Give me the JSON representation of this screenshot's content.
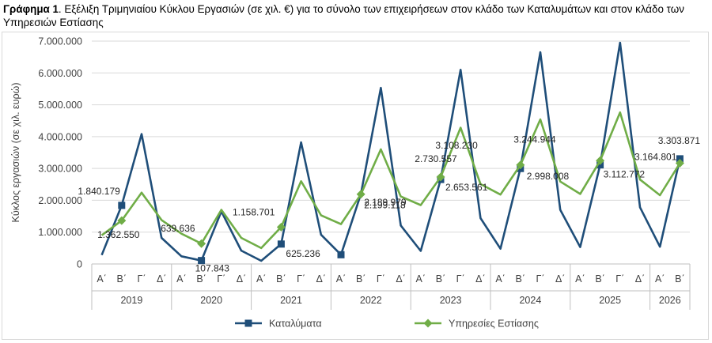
{
  "header": {
    "title_bold": "Γράφημα 1",
    "title_rest": ". Εξέλιξη Τριμηνιαίου Κύκλου Εργασιών (σε χιλ. €) για το σύνολο των επιχειρήσεων στον κλάδο των Καταλυμάτων και στον κλάδο των Υπηρεσιών Εστίασης"
  },
  "chart_data": {
    "type": "line",
    "title": "",
    "xlabel": "",
    "ylabel": "Κύκλος εργασιών (σε χιλ. ευρώ)",
    "ylim": [
      0,
      7000000
    ],
    "yticks": [
      "0",
      "1.000.000",
      "2.000.000",
      "3.000.000",
      "4.000.000",
      "5.000.000",
      "6.000.000",
      "7.000.000"
    ],
    "ytick_values": [
      0,
      1000000,
      2000000,
      3000000,
      4000000,
      5000000,
      6000000,
      7000000
    ],
    "categories": [
      "Α΄",
      "Β΄",
      "Γ΄",
      "Δ΄",
      "Α΄",
      "Β΄",
      "Γ΄",
      "Δ΄",
      "Α΄",
      "Β΄",
      "Γ΄",
      "Δ΄",
      "Α΄",
      "Β΄",
      "Γ΄",
      "Δ΄",
      "Α΄",
      "Β΄",
      "Γ΄",
      "Δ΄",
      "Α΄",
      "Β΄",
      "Γ΄",
      "Δ΄",
      "Α΄",
      "Β΄",
      "Γ΄",
      "Δ΄",
      "Α΄",
      "Β΄"
    ],
    "years": [
      {
        "label": "2019",
        "count": 4
      },
      {
        "label": "2020",
        "count": 4
      },
      {
        "label": "2021",
        "count": 4
      },
      {
        "label": "2022",
        "count": 4
      },
      {
        "label": "2023",
        "count": 4
      },
      {
        "label": "2024",
        "count": 4
      },
      {
        "label": "2025",
        "count": 4
      },
      {
        "label": "2026",
        "count": 2
      }
    ],
    "legend_position": "bottom",
    "gridlines": true,
    "series": [
      {
        "name": "Καταλύματα",
        "color": "#1f4e79",
        "marker": "square",
        "values": [
          280000,
          1840179,
          4080000,
          820000,
          240000,
          107843,
          1650000,
          420000,
          100000,
          625236,
          3820000,
          920000,
          290000,
          2199118,
          5530000,
          1210000,
          410000,
          2653561,
          6100000,
          1440000,
          480000,
          2998008,
          6650000,
          1700000,
          530000,
          3112772,
          6950000,
          1780000,
          540000,
          3303871
        ],
        "markers_at": [
          1,
          5,
          9,
          12,
          17,
          21,
          25,
          29
        ],
        "labels": [
          {
            "index": 1,
            "text": "1.840.179"
          },
          {
            "index": 5,
            "text": "107.843"
          },
          {
            "index": 9,
            "text": "625.236"
          },
          {
            "index": 13,
            "text": "2.199.118"
          },
          {
            "index": 17,
            "text": "2.653.561"
          },
          {
            "index": 21,
            "text": "2.998.008"
          },
          {
            "index": 25,
            "text": "3.112.772"
          },
          {
            "index": 29,
            "text": "3.303.871"
          }
        ]
      },
      {
        "name": "Υπηρεσίες Εστίασης",
        "color": "#70ad47",
        "marker": "diamond",
        "values": [
          900000,
          1362550,
          2240000,
          1380000,
          950000,
          639636,
          1700000,
          820000,
          500000,
          1158701,
          2600000,
          1530000,
          1250000,
          2189979,
          3600000,
          2120000,
          1850000,
          2730557,
          4280000,
          2510000,
          2180000,
          3108230,
          4540000,
          2590000,
          2200000,
          3244944,
          4760000,
          2650000,
          2160000,
          3164801
        ],
        "markers_at": [
          1,
          5,
          9,
          13,
          17,
          21,
          25,
          29
        ],
        "labels": [
          {
            "index": 1,
            "text": "1.362.550"
          },
          {
            "index": 5,
            "text": "639.636"
          },
          {
            "index": 9,
            "text": "1.158.701"
          },
          {
            "index": 13,
            "text": "2.189.979"
          },
          {
            "index": 17,
            "text": "2.730.557"
          },
          {
            "index": 21,
            "text": "3.108.230"
          },
          {
            "index": 25,
            "text": "3.244.944"
          },
          {
            "index": 29,
            "text": "3.164.801"
          }
        ]
      }
    ]
  }
}
